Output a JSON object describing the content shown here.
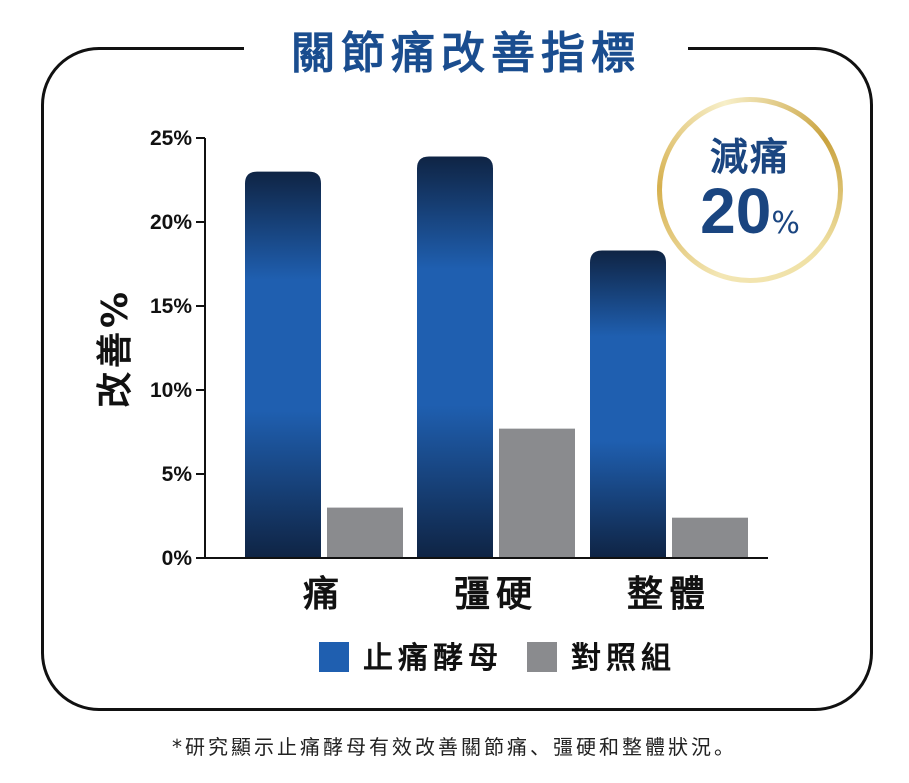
{
  "title": "關節痛改善指標",
  "badge": {
    "text": "減痛",
    "value": "20",
    "unit": "%"
  },
  "footnote": "*研究顯示止痛酵母有效改善關節痛、彊硬和整體狀況。",
  "colors": {
    "title": "#1a4d8f",
    "text": "#111111",
    "treatment": "#1f5fb0",
    "treatment_dark": "#0f2444",
    "control": "#8a8b8e",
    "badge_text": "#1a4580"
  },
  "chart_data": {
    "type": "bar",
    "title": "",
    "ylabel": "改善%",
    "xlabel": "",
    "categories": [
      "痛",
      "彊硬",
      "整體"
    ],
    "series": [
      {
        "name": "止痛酵母",
        "values": [
          23,
          23.9,
          18.3
        ]
      },
      {
        "name": "對照組",
        "values": [
          3,
          7.7,
          2.4
        ]
      }
    ],
    "ylim": [
      0,
      25
    ],
    "yticks": [
      0,
      5,
      10,
      15,
      20,
      25
    ],
    "ytick_labels": [
      "0%",
      "5%",
      "10%",
      "15%",
      "20%",
      "25%"
    ],
    "legend": "bottom",
    "grid": false
  }
}
